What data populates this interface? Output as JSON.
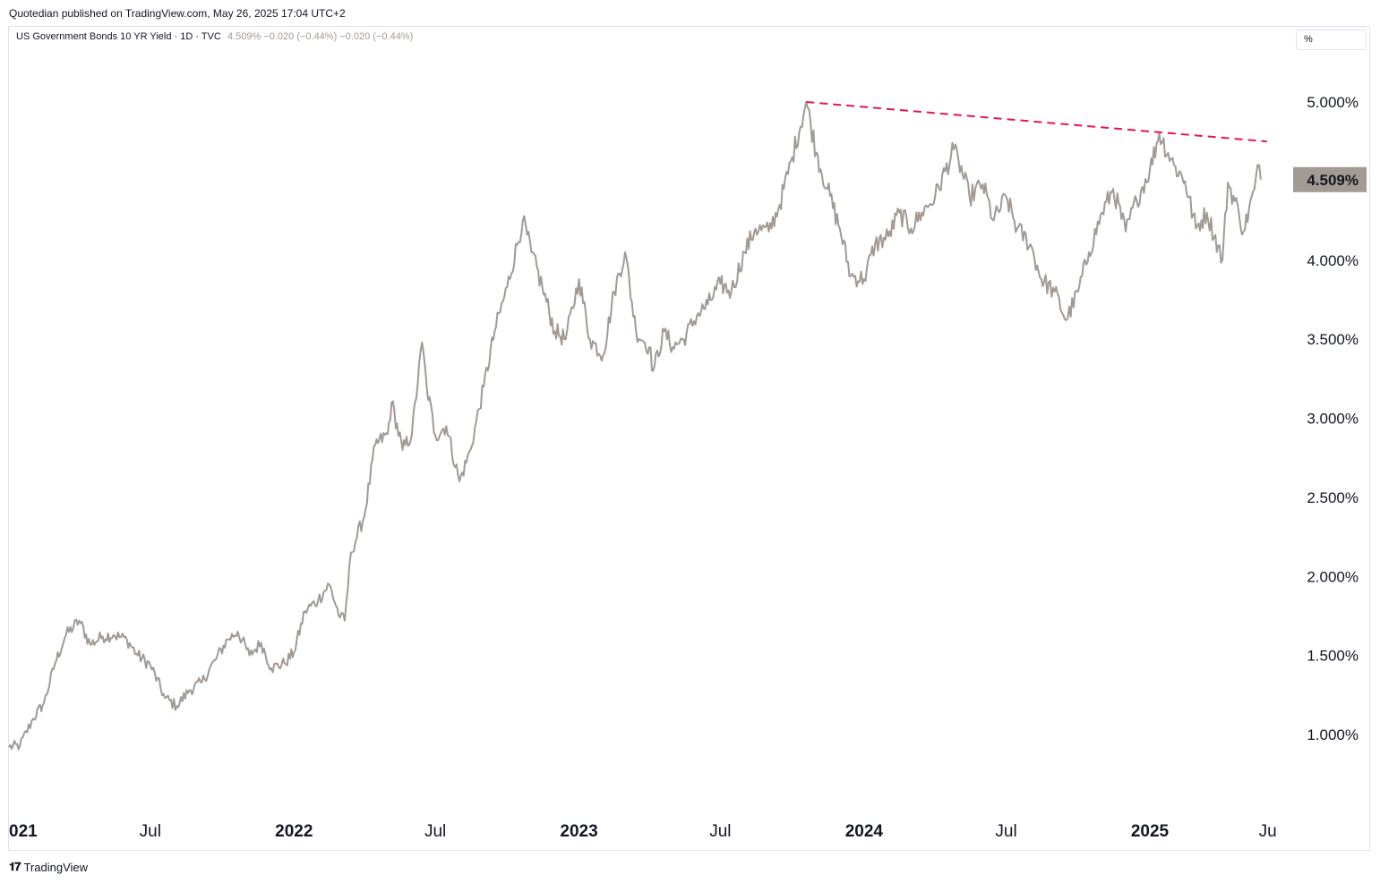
{
  "header": {
    "published": "Quotedian published on TradingView.com, May 26, 2025 17:04 UTC+2"
  },
  "legend": {
    "symbol": "US Government Bonds 10 YR Yield · 1D · TVC",
    "values": "4.509%  −0.020 (−0.44%)  −0.020 (−0.44%)"
  },
  "unit_button": "%",
  "last_price_label": "4.509%",
  "footer": {
    "brand": "TradingView",
    "logo_icon": "tradingview-logo-icon"
  },
  "colors": {
    "line": "#a29a93",
    "trendline": "#e0194f",
    "label_bg": "#a29a93"
  },
  "chart_data": {
    "type": "line",
    "title": "US Government Bonds 10 YR Yield",
    "ylabel": "",
    "xlabel": "",
    "ylim": [
      0.5,
      5.5
    ],
    "y_ticks": [
      "5.000%",
      "4.000%",
      "3.500%",
      "3.000%",
      "2.500%",
      "2.000%",
      "1.500%",
      "1.000%"
    ],
    "x_ticks": [
      {
        "label": "021",
        "date": "2021-01-01",
        "year": true
      },
      {
        "label": "Jul",
        "date": "2021-07-01",
        "year": false
      },
      {
        "label": "2022",
        "date": "2022-01-01",
        "year": true
      },
      {
        "label": "Jul",
        "date": "2022-07-01",
        "year": false
      },
      {
        "label": "2023",
        "date": "2023-01-01",
        "year": true
      },
      {
        "label": "Jul",
        "date": "2023-07-01",
        "year": false
      },
      {
        "label": "2024",
        "date": "2024-01-01",
        "year": true
      },
      {
        "label": "Jul",
        "date": "2024-07-01",
        "year": false
      },
      {
        "label": "2025",
        "date": "2025-01-01",
        "year": true
      },
      {
        "label": "Ju",
        "date": "2025-06-01",
        "year": false
      }
    ],
    "series": [
      {
        "x": [
          "2021-01-01",
          "2021-01-15",
          "2021-02-01",
          "2021-02-15",
          "2021-03-01",
          "2021-03-15",
          "2021-04-01",
          "2021-04-15",
          "2021-05-01",
          "2021-05-15",
          "2021-06-01",
          "2021-06-15",
          "2021-07-01",
          "2021-07-20",
          "2021-08-04",
          "2021-08-20",
          "2021-09-05",
          "2021-09-22",
          "2021-10-08",
          "2021-10-21",
          "2021-11-05",
          "2021-11-20",
          "2021-12-03",
          "2021-12-20",
          "2022-01-01",
          "2022-01-15",
          "2022-02-01",
          "2022-02-15",
          "2022-03-01",
          "2022-03-07",
          "2022-03-15",
          "2022-04-01",
          "2022-04-15",
          "2022-05-01",
          "2022-05-06",
          "2022-05-20",
          "2022-06-01",
          "2022-06-14",
          "2022-06-20",
          "2022-07-01",
          "2022-07-15",
          "2022-08-01",
          "2022-08-15",
          "2022-09-01",
          "2022-09-15",
          "2022-10-01",
          "2022-10-21",
          "2022-11-01",
          "2022-11-15",
          "2022-12-01",
          "2022-12-15",
          "2023-01-01",
          "2023-01-15",
          "2023-02-01",
          "2023-02-15",
          "2023-03-01",
          "2023-03-15",
          "2023-04-01",
          "2023-04-06",
          "2023-04-20",
          "2023-05-01",
          "2023-05-15",
          "2023-06-01",
          "2023-06-15",
          "2023-07-01",
          "2023-07-15",
          "2023-08-01",
          "2023-08-15",
          "2023-09-01",
          "2023-09-15",
          "2023-10-01",
          "2023-10-19",
          "2023-11-01",
          "2023-11-15",
          "2023-12-01",
          "2023-12-15",
          "2024-01-01",
          "2024-01-15",
          "2024-02-01",
          "2024-02-15",
          "2024-03-01",
          "2024-03-15",
          "2024-04-01",
          "2024-04-25",
          "2024-05-01",
          "2024-05-15",
          "2024-06-01",
          "2024-06-15",
          "2024-07-01",
          "2024-07-15",
          "2024-08-01",
          "2024-08-15",
          "2024-09-01",
          "2024-09-16",
          "2024-10-01",
          "2024-10-15",
          "2024-11-01",
          "2024-11-15",
          "2024-12-01",
          "2024-12-15",
          "2025-01-01",
          "2025-01-13",
          "2025-02-01",
          "2025-02-15",
          "2025-03-01",
          "2025-03-15",
          "2025-04-04",
          "2025-04-11",
          "2025-04-25",
          "2025-05-01",
          "2025-05-15",
          "2025-05-21",
          "2025-05-23"
        ],
        "values": [
          0.92,
          0.93,
          1.1,
          1.2,
          1.45,
          1.63,
          1.72,
          1.57,
          1.62,
          1.63,
          1.6,
          1.5,
          1.44,
          1.23,
          1.18,
          1.28,
          1.33,
          1.47,
          1.6,
          1.65,
          1.5,
          1.58,
          1.42,
          1.45,
          1.52,
          1.78,
          1.85,
          1.95,
          1.74,
          1.72,
          2.15,
          2.38,
          2.83,
          2.9,
          3.1,
          2.8,
          2.9,
          3.48,
          3.2,
          2.89,
          2.95,
          2.6,
          2.8,
          3.2,
          3.55,
          3.83,
          4.25,
          4.05,
          3.83,
          3.55,
          3.5,
          3.88,
          3.5,
          3.4,
          3.8,
          4.05,
          3.55,
          3.45,
          3.3,
          3.55,
          3.45,
          3.5,
          3.65,
          3.72,
          3.85,
          3.8,
          4.05,
          4.2,
          4.18,
          4.35,
          4.65,
          5.0,
          4.68,
          4.45,
          4.2,
          3.9,
          3.88,
          4.1,
          4.15,
          4.3,
          4.2,
          4.3,
          4.4,
          4.7,
          4.63,
          4.4,
          4.48,
          4.25,
          4.4,
          4.2,
          4.1,
          3.88,
          3.8,
          3.62,
          3.8,
          4.05,
          4.3,
          4.45,
          4.18,
          4.38,
          4.57,
          4.8,
          4.6,
          4.5,
          4.2,
          4.3,
          4.0,
          4.49,
          4.3,
          4.18,
          4.45,
          4.6,
          4.51
        ]
      }
    ],
    "annotations": [
      {
        "type": "dashed-trendline",
        "from": {
          "x": "2023-10-19",
          "y": 5.0
        },
        "to": {
          "x": "2025-05-31",
          "y": 4.75
        }
      }
    ],
    "grid": false,
    "legend": "top-left"
  }
}
